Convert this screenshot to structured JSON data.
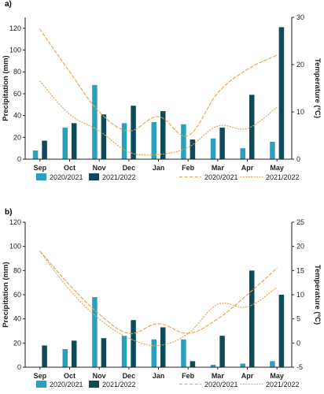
{
  "colors": {
    "bar_2020": "#2aa0bd",
    "bar_2021": "#0f4a5a",
    "temp_line": "#e8a04b",
    "axis": "#222222"
  },
  "legend_labels": [
    "2020/2021",
    "2021/2022",
    "2020/2021",
    "2021/2022"
  ],
  "chart_data": [
    {
      "panel_label": "a)",
      "type": "bar",
      "categories": [
        "Sep",
        "Oct",
        "Nov",
        "Dec",
        "Jan",
        "Feb",
        "Mar",
        "Apr",
        "May"
      ],
      "ylabel": "Precipitation (mm)",
      "y2label": "Temperature (ºC)",
      "ylim": [
        0,
        130
      ],
      "yticks": [
        0,
        20,
        40,
        60,
        80,
        100,
        120
      ],
      "y2lim": [
        0,
        30
      ],
      "y2ticks": [
        0,
        10,
        20,
        30
      ],
      "series": [
        {
          "name": "2020/2021",
          "kind": "bar",
          "values": [
            8,
            29,
            68,
            33,
            34,
            32,
            19,
            10,
            16
          ]
        },
        {
          "name": "2021/2022",
          "kind": "bar",
          "values": [
            17,
            33,
            41,
            49,
            44,
            18,
            29,
            59,
            121
          ]
        },
        {
          "name": "2020/2021",
          "kind": "line",
          "style": "dashed",
          "values": [
            27.5,
            18.5,
            10,
            6,
            9,
            5,
            14,
            19,
            22
          ]
        },
        {
          "name": "2021/2022",
          "kind": "line",
          "style": "dotted",
          "values": [
            16.5,
            9.5,
            6,
            1.5,
            1,
            2.5,
            7,
            6.5,
            11
          ]
        }
      ]
    },
    {
      "panel_label": "b)",
      "type": "bar",
      "categories": [
        "Sep",
        "Oct",
        "Nov",
        "Dec",
        "Jan",
        "Feb",
        "Mar",
        "Apr",
        "May"
      ],
      "ylabel": "Precipitation (mm)",
      "y2label": "Temperature (ºC)",
      "ylim": [
        0,
        120
      ],
      "yticks": [
        0,
        20,
        40,
        60,
        80,
        100,
        120
      ],
      "y2lim": [
        -5,
        25
      ],
      "y2ticks": [
        -5,
        0,
        5,
        10,
        15,
        20,
        25
      ],
      "series": [
        {
          "name": "2020/2021",
          "kind": "bar",
          "values": [
            0,
            15,
            58,
            26,
            23,
            23,
            2,
            3,
            5
          ]
        },
        {
          "name": "2021/2022",
          "kind": "bar",
          "values": [
            18,
            22,
            24,
            39,
            33,
            5,
            26,
            80,
            60
          ]
        },
        {
          "name": "2020/2021",
          "kind": "line",
          "style": "dashed",
          "values": [
            19,
            12,
            6,
            2,
            4,
            2,
            5,
            10,
            15.5
          ]
        },
        {
          "name": "2021/2022",
          "kind": "line",
          "style": "dotted",
          "values": [
            19,
            11,
            5,
            1,
            -0.5,
            2,
            8,
            7.5,
            11.5
          ]
        }
      ]
    }
  ]
}
